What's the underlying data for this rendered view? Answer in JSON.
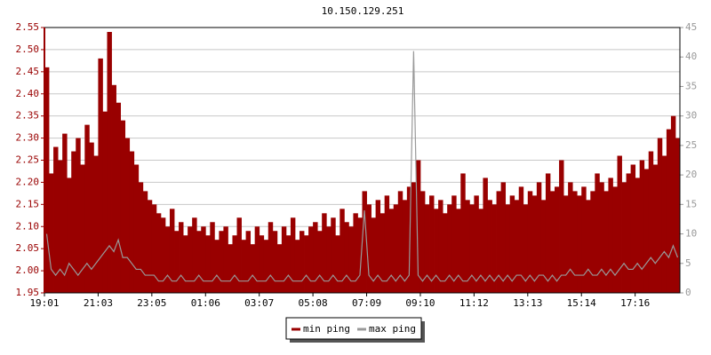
{
  "chart_data": {
    "type": "bar-line",
    "title": "10.150.129.251",
    "categories": [
      "19:01",
      null,
      null,
      null,
      null,
      null,
      null,
      null,
      null,
      null,
      null,
      null,
      "21:03",
      null,
      null,
      null,
      null,
      null,
      null,
      null,
      null,
      null,
      null,
      null,
      "23:05",
      null,
      null,
      null,
      null,
      null,
      null,
      null,
      null,
      null,
      null,
      null,
      "01:06",
      null,
      null,
      null,
      null,
      null,
      null,
      null,
      null,
      null,
      null,
      null,
      "03:07",
      null,
      null,
      null,
      null,
      null,
      null,
      null,
      null,
      null,
      null,
      null,
      "05:08",
      null,
      null,
      null,
      null,
      null,
      null,
      null,
      null,
      null,
      null,
      null,
      "07:09",
      null,
      null,
      null,
      null,
      null,
      null,
      null,
      null,
      null,
      null,
      null,
      "09:10",
      null,
      null,
      null,
      null,
      null,
      null,
      null,
      null,
      null,
      null,
      null,
      "11:12",
      null,
      null,
      null,
      null,
      null,
      null,
      null,
      null,
      null,
      null,
      null,
      "13:13",
      null,
      null,
      null,
      null,
      null,
      null,
      null,
      null,
      null,
      null,
      null,
      "15:14",
      null,
      null,
      null,
      null,
      null,
      null,
      null,
      null,
      null,
      null,
      null,
      "17:16",
      null,
      null,
      null,
      null,
      null,
      null,
      null,
      null,
      null
    ],
    "series": [
      {
        "name": "min ping",
        "color": "#990000",
        "axis": "y",
        "values": [
          2.46,
          2.22,
          2.28,
          2.25,
          2.31,
          2.21,
          2.27,
          2.3,
          2.24,
          2.33,
          2.29,
          2.26,
          2.48,
          2.36,
          2.54,
          2.42,
          2.38,
          2.34,
          2.3,
          2.27,
          2.24,
          2.2,
          2.18,
          2.16,
          2.15,
          2.13,
          2.12,
          2.1,
          2.14,
          2.09,
          2.11,
          2.08,
          2.1,
          2.12,
          2.09,
          2.1,
          2.08,
          2.11,
          2.07,
          2.09,
          2.1,
          2.06,
          2.08,
          2.12,
          2.07,
          2.09,
          2.06,
          2.1,
          2.08,
          2.07,
          2.11,
          2.09,
          2.06,
          2.1,
          2.08,
          2.12,
          2.07,
          2.09,
          2.08,
          2.1,
          2.11,
          2.09,
          2.13,
          2.1,
          2.12,
          2.08,
          2.14,
          2.11,
          2.1,
          2.13,
          2.12,
          2.18,
          2.15,
          2.12,
          2.16,
          2.13,
          2.17,
          2.14,
          2.15,
          2.18,
          2.16,
          2.19,
          2.2,
          2.25,
          2.18,
          2.15,
          2.17,
          2.14,
          2.16,
          2.13,
          2.15,
          2.17,
          2.14,
          2.22,
          2.16,
          2.15,
          2.17,
          2.14,
          2.21,
          2.16,
          2.15,
          2.18,
          2.2,
          2.15,
          2.17,
          2.16,
          2.19,
          2.15,
          2.18,
          2.17,
          2.2,
          2.16,
          2.22,
          2.18,
          2.19,
          2.25,
          2.17,
          2.2,
          2.18,
          2.17,
          2.19,
          2.16,
          2.18,
          2.22,
          2.2,
          2.18,
          2.21,
          2.19,
          2.26,
          2.2,
          2.22,
          2.24,
          2.21,
          2.25,
          2.23,
          2.27,
          2.24,
          2.3,
          2.26,
          2.32,
          2.35,
          2.3
        ]
      },
      {
        "name": "max ping",
        "color": "#999999",
        "axis": "y2",
        "values": [
          10,
          4,
          3,
          4,
          3,
          5,
          4,
          3,
          4,
          5,
          4,
          5,
          6,
          7,
          8,
          7,
          9,
          6,
          6,
          5,
          4,
          4,
          3,
          3,
          3,
          2,
          2,
          3,
          2,
          2,
          3,
          2,
          2,
          2,
          3,
          2,
          2,
          2,
          3,
          2,
          2,
          2,
          3,
          2,
          2,
          2,
          3,
          2,
          2,
          2,
          3,
          2,
          2,
          2,
          3,
          2,
          2,
          2,
          3,
          2,
          2,
          3,
          2,
          2,
          3,
          2,
          2,
          3,
          2,
          2,
          3,
          14,
          3,
          2,
          3,
          2,
          2,
          3,
          2,
          3,
          2,
          3,
          41,
          3,
          2,
          3,
          2,
          3,
          2,
          2,
          3,
          2,
          3,
          2,
          2,
          3,
          2,
          3,
          2,
          3,
          2,
          3,
          2,
          3,
          2,
          3,
          3,
          2,
          3,
          2,
          3,
          3,
          2,
          3,
          2,
          3,
          3,
          4,
          3,
          3,
          3,
          4,
          3,
          3,
          4,
          3,
          4,
          3,
          4,
          5,
          4,
          4,
          5,
          4,
          5,
          6,
          5,
          6,
          7,
          6,
          8,
          6
        ]
      }
    ],
    "ylim": [
      1.95,
      2.55
    ],
    "yticks": [
      1.95,
      {
        "value": 2,
        "label": "2.00"
      },
      2.05,
      {
        "value": 2.1,
        "label": "2.10"
      },
      2.15,
      {
        "value": 2.2,
        "label": "2.20"
      },
      2.25,
      {
        "value": 2.3,
        "label": "2.30"
      },
      2.35,
      {
        "value": 2.4,
        "label": "2.40"
      },
      2.45,
      {
        "value": 2.5,
        "label": "2.50"
      },
      2.55
    ],
    "y2lim": [
      0,
      45
    ],
    "y2ticks": [
      0,
      5,
      10,
      15,
      20,
      25,
      30,
      35,
      40,
      45
    ],
    "grid": true
  }
}
